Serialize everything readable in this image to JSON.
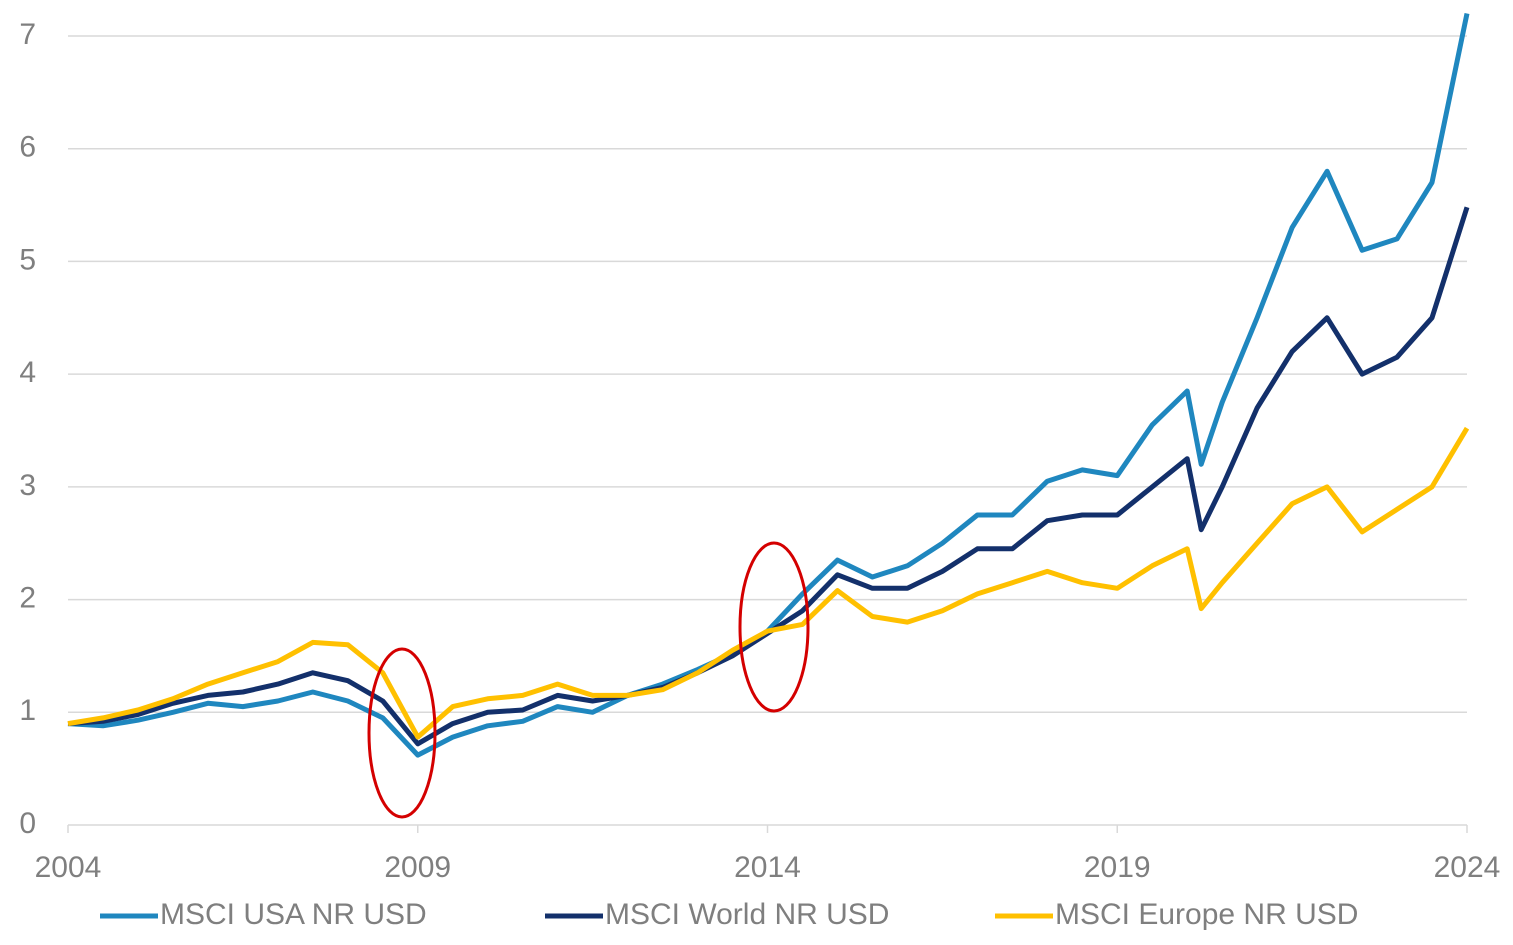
{
  "chart_data": {
    "type": "line",
    "x": [
      2004,
      2004.5,
      2005,
      2005.5,
      2006,
      2006.5,
      2007,
      2007.5,
      2008,
      2008.5,
      2009,
      2009.5,
      2010,
      2010.5,
      2011,
      2011.5,
      2012,
      2012.5,
      2013,
      2013.5,
      2014,
      2014.5,
      2015,
      2015.5,
      2016,
      2016.5,
      2017,
      2017.5,
      2018,
      2018.5,
      2019,
      2019.5,
      2020,
      2020.2,
      2020.5,
      2021,
      2021.5,
      2022,
      2022.5,
      2023,
      2023.5,
      2024
    ],
    "series": [
      {
        "name": "MSCI USA NR USD",
        "color": "#1f87bf",
        "values": [
          0.9,
          0.88,
          0.93,
          1.0,
          1.08,
          1.05,
          1.1,
          1.18,
          1.1,
          0.95,
          0.62,
          0.78,
          0.88,
          0.92,
          1.05,
          1.0,
          1.15,
          1.25,
          1.38,
          1.52,
          1.72,
          2.05,
          2.35,
          2.2,
          2.3,
          2.5,
          2.75,
          2.75,
          3.05,
          3.15,
          3.1,
          3.55,
          3.85,
          3.2,
          3.75,
          4.5,
          5.3,
          5.8,
          5.1,
          5.2,
          5.7,
          7.2
        ]
      },
      {
        "name": "MSCI World NR USD",
        "color": "#13306b",
        "values": [
          0.9,
          0.92,
          0.98,
          1.08,
          1.15,
          1.18,
          1.25,
          1.35,
          1.28,
          1.1,
          0.72,
          0.9,
          1.0,
          1.02,
          1.15,
          1.1,
          1.15,
          1.22,
          1.35,
          1.5,
          1.7,
          1.9,
          2.22,
          2.1,
          2.1,
          2.25,
          2.45,
          2.45,
          2.7,
          2.75,
          2.75,
          3.0,
          3.25,
          2.62,
          3.0,
          3.7,
          4.2,
          4.5,
          4.0,
          4.15,
          4.5,
          5.48
        ]
      },
      {
        "name": "MSCI Europe NR USD",
        "color": "#ffc000",
        "values": [
          0.9,
          0.95,
          1.02,
          1.12,
          1.25,
          1.35,
          1.45,
          1.62,
          1.6,
          1.35,
          0.78,
          1.05,
          1.12,
          1.15,
          1.25,
          1.15,
          1.15,
          1.2,
          1.35,
          1.55,
          1.72,
          1.78,
          2.08,
          1.85,
          1.8,
          1.9,
          2.05,
          2.15,
          2.25,
          2.15,
          2.1,
          2.3,
          2.45,
          1.92,
          2.15,
          2.5,
          2.85,
          3.0,
          2.6,
          2.8,
          3.0,
          3.52
        ]
      }
    ],
    "xlim": [
      2004,
      2024
    ],
    "xticks": [
      2004,
      2009,
      2014,
      2019,
      2024
    ],
    "ylim": [
      0,
      7
    ],
    "yticks": [
      0,
      1,
      2,
      3,
      4,
      5,
      6,
      7
    ],
    "grid": true
  }
}
